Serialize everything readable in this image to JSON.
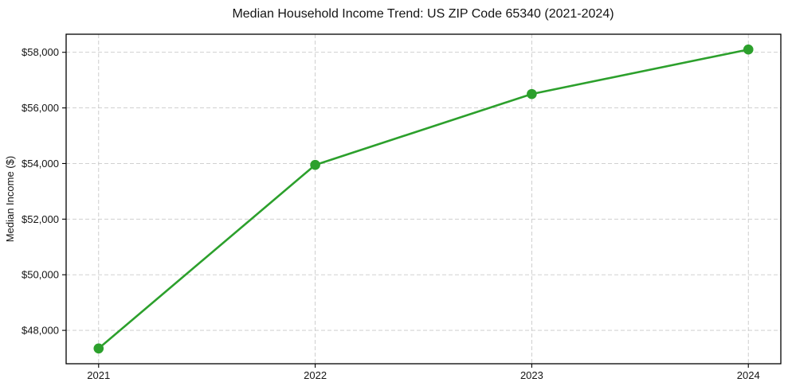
{
  "chart_data": {
    "type": "line",
    "title": "Median Household Income Trend: US ZIP Code 65340 (2021-2024)",
    "xlabel": "",
    "ylabel": "Median Income ($)",
    "categories": [
      "2021",
      "2022",
      "2023",
      "2024"
    ],
    "x": [
      2021,
      2022,
      2023,
      2024
    ],
    "series": [
      {
        "name": "Median Household Income",
        "values": [
          47350,
          53950,
          56500,
          58100
        ]
      }
    ],
    "y_ticks": [
      48000,
      50000,
      52000,
      54000,
      56000,
      58000
    ],
    "y_tick_labels": [
      "$48,000",
      "$50,000",
      "$52,000",
      "$54,000",
      "$56,000",
      "$58,000"
    ],
    "xlim": [
      2020.85,
      2024.15
    ],
    "ylim": [
      46800,
      58650
    ],
    "grid": true,
    "grid_style": "dashed",
    "legend_position": "none",
    "line_color": "#2ca02c",
    "marker": "circle",
    "grid_color": "#c9c9c9",
    "spine_color": "#000000",
    "background_color": "#ffffff",
    "text_color": "#141414"
  }
}
